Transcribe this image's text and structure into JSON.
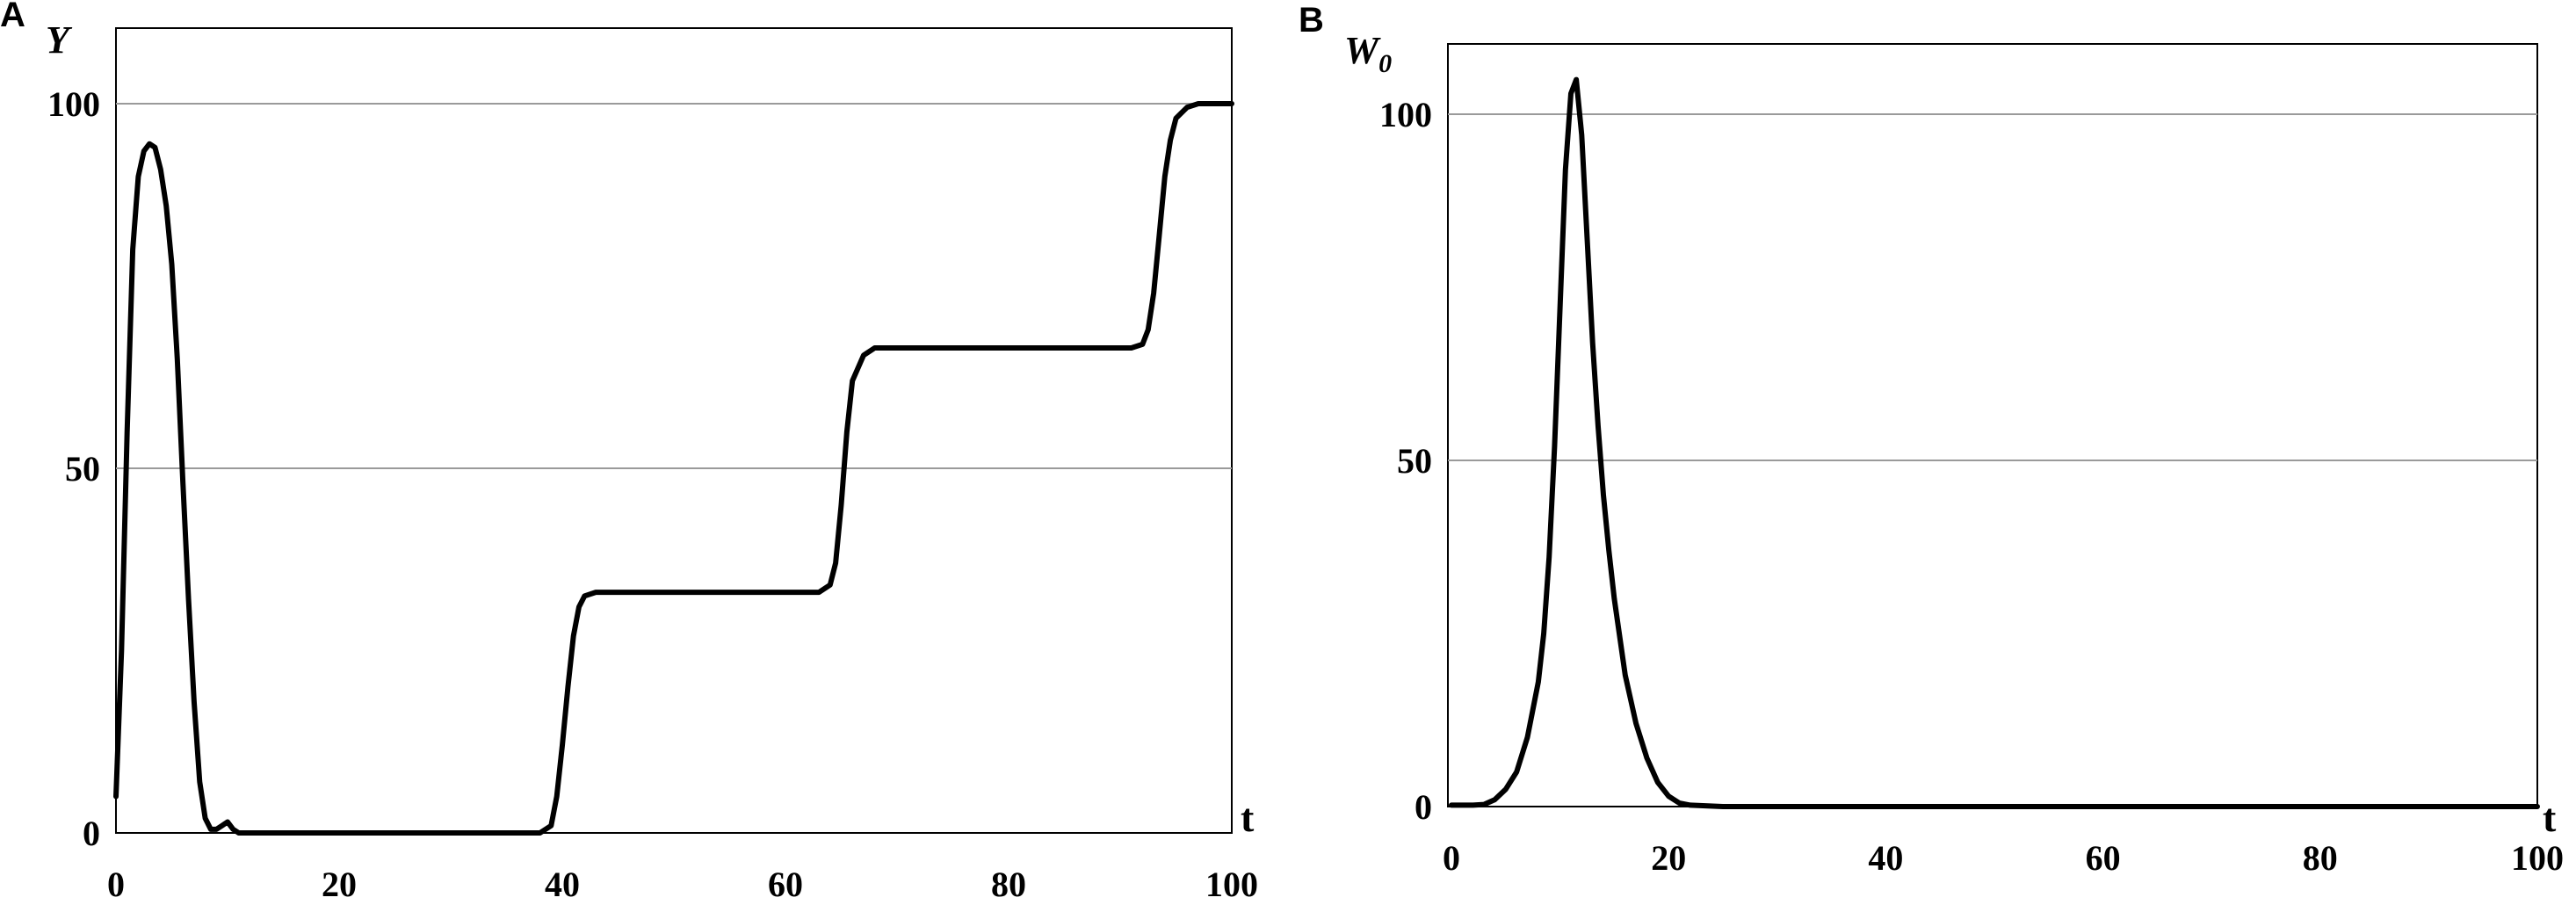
{
  "chart_data": [
    {
      "type": "line",
      "panel": "A",
      "ylabel": "Y",
      "xlabel": "t",
      "xlim": [
        0,
        100
      ],
      "ylim": [
        0,
        100
      ],
      "xticks": [
        "0",
        "20",
        "40",
        "60",
        "80",
        "100"
      ],
      "yticks": [
        "0",
        "50",
        "100"
      ],
      "grid": "horizontal",
      "series": [
        {
          "color": "#000000",
          "x": [
            0,
            0.5,
            1,
            1.5,
            2,
            2.5,
            3,
            3.5,
            4,
            4.5,
            5,
            5.5,
            6,
            6.5,
            7,
            7.5,
            8,
            8.5,
            9,
            9.5,
            10,
            10.5,
            11,
            11.5,
            12,
            13,
            15,
            20,
            30,
            38,
            39,
            39.5,
            40,
            40.5,
            41,
            41.5,
            42,
            43,
            45,
            55,
            63,
            64,
            64.5,
            65,
            65.5,
            66,
            67,
            68,
            70,
            80,
            91,
            92,
            92.5,
            93,
            93.5,
            94,
            94.5,
            95,
            96,
            97,
            100
          ],
          "y": [
            5,
            25,
            55,
            80,
            90,
            93.5,
            94.5,
            94,
            91,
            86,
            78,
            65,
            48,
            32,
            18,
            7,
            2,
            0.5,
            0.5,
            1,
            1.5,
            0.5,
            0,
            0,
            0,
            0,
            0,
            0,
            0,
            0,
            1,
            5,
            12,
            20,
            27,
            31,
            32.5,
            33,
            33,
            33,
            33,
            34,
            37,
            45,
            55,
            62,
            65.5,
            66.5,
            66.5,
            66.5,
            66.5,
            67,
            69,
            74,
            82,
            90,
            95,
            98,
            99.5,
            100,
            100
          ]
        }
      ]
    },
    {
      "type": "line",
      "panel": "B",
      "ylabel": "W0",
      "ylabel_main": "W",
      "ylabel_sub": "0",
      "xlabel": "t",
      "xlim": [
        0,
        100
      ],
      "ylim": [
        0,
        110
      ],
      "xticks": [
        "0",
        "20",
        "40",
        "60",
        "80",
        "100"
      ],
      "yticks": [
        "0",
        "50",
        "100"
      ],
      "grid": "horizontal",
      "series": [
        {
          "color": "#000000",
          "x": [
            0,
            2,
            3,
            4,
            5,
            6,
            7,
            8,
            8.5,
            9,
            9.5,
            10,
            10.5,
            11,
            11.5,
            12,
            12.5,
            13,
            13.5,
            14,
            14.5,
            15,
            16,
            17,
            18,
            19,
            20,
            21,
            22,
            25,
            30,
            50,
            100
          ],
          "y": [
            0.2,
            0.2,
            0.3,
            1,
            2.5,
            5,
            10,
            18,
            25,
            36,
            52,
            72,
            92,
            103,
            105,
            97,
            82,
            67,
            55,
            45,
            37,
            30,
            19,
            12,
            7,
            3.5,
            1.5,
            0.5,
            0.2,
            0,
            0,
            0,
            0
          ]
        }
      ]
    }
  ]
}
